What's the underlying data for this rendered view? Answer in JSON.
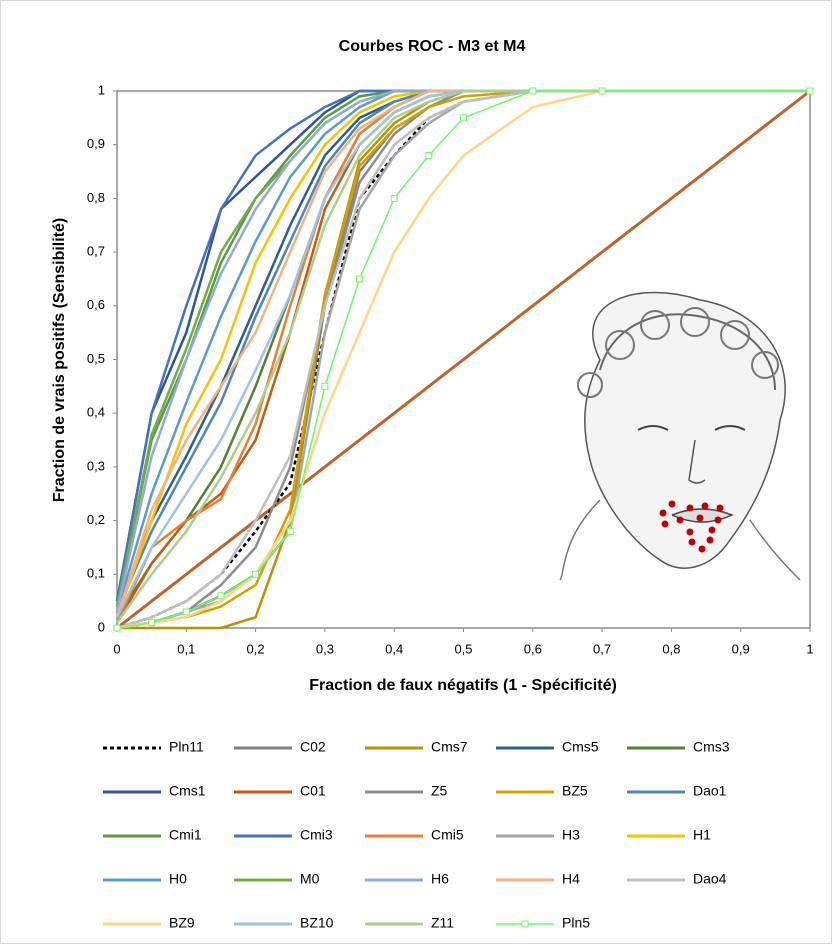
{
  "chart_data": {
    "type": "line",
    "title": "Courbes ROC - M3 et M4",
    "x_label": "Fraction de faux négatifs (1 - Spécificité)",
    "y_label": "Fraction de vrais positifs (Sensibilité)",
    "xlim": [
      0,
      1
    ],
    "ylim": [
      0,
      1
    ],
    "xticks": [
      0,
      {
        "value": 0.1,
        "label": "0,1"
      },
      {
        "value": 0.2,
        "label": "0,2"
      },
      {
        "value": 0.3,
        "label": "0,3"
      },
      {
        "value": 0.4,
        "label": "0,4"
      },
      {
        "value": 0.5,
        "label": "0,5"
      },
      {
        "value": 0.6,
        "label": "0,6"
      },
      {
        "value": 0.7,
        "label": "0,7"
      },
      {
        "value": 0.8,
        "label": "0,8"
      },
      {
        "value": 0.9,
        "label": "0,9"
      },
      1
    ],
    "yticks": [
      0,
      {
        "value": 0.1,
        "label": "0,1"
      },
      {
        "value": 0.2,
        "label": "0,2"
      },
      {
        "value": 0.3,
        "label": "0,3"
      },
      {
        "value": 0.4,
        "label": "0,4"
      },
      {
        "value": 0.5,
        "label": "0,5"
      },
      {
        "value": 0.6,
        "label": "0,6"
      },
      {
        "value": 0.7,
        "label": "0,7"
      },
      {
        "value": 0.8,
        "label": "0,8"
      },
      {
        "value": 0.9,
        "label": "0,9"
      },
      1
    ],
    "grid": false,
    "legend": "bottom",
    "x": [
      0,
      0.05,
      0.1,
      0.15,
      0.2,
      0.25,
      0.3,
      0.35,
      0.4,
      0.45,
      0.5,
      0.6,
      0.7,
      1
    ],
    "series": [
      {
        "name": "Pln11",
        "color": "#000000",
        "dashed": true,
        "values": [
          0,
          0.02,
          0.05,
          0.1,
          0.18,
          0.27,
          0.55,
          0.8,
          0.88,
          0.95,
          0.98,
          1,
          1,
          1
        ]
      },
      {
        "name": "C02",
        "color": "#7f7f7f",
        "values": [
          0,
          0.01,
          0.03,
          0.06,
          0.1,
          0.2,
          0.6,
          0.85,
          0.93,
          0.97,
          1,
          1,
          1,
          1
        ]
      },
      {
        "name": "Cms7",
        "color": "#bf8f00",
        "values": [
          0,
          0,
          0,
          0,
          0.02,
          0.2,
          0.62,
          0.87,
          0.94,
          0.98,
          1,
          1,
          1,
          1
        ]
      },
      {
        "name": "Cms5",
        "color": "#2e5f8a",
        "values": [
          0.03,
          0.2,
          0.32,
          0.45,
          0.6,
          0.75,
          0.88,
          0.95,
          0.98,
          1,
          1,
          1,
          1,
          1
        ]
      },
      {
        "name": "Cms3",
        "color": "#548235",
        "values": [
          0.02,
          0.12,
          0.2,
          0.3,
          0.45,
          0.62,
          0.8,
          0.92,
          0.97,
          1,
          1,
          1,
          1,
          1
        ]
      },
      {
        "name": "Cms1",
        "color": "#2f5597",
        "values": [
          0.05,
          0.4,
          0.55,
          0.78,
          0.84,
          0.9,
          0.96,
          1,
          1,
          1,
          1,
          1,
          1,
          1
        ]
      },
      {
        "name": "C01",
        "color": "#c55a11",
        "values": [
          0.01,
          0.12,
          0.2,
          0.25,
          0.35,
          0.55,
          0.78,
          0.9,
          0.96,
          0.99,
          1,
          1,
          1,
          1
        ]
      },
      {
        "name": "Z5",
        "color": "#8c8c8c",
        "values": [
          0,
          0.01,
          0.03,
          0.08,
          0.15,
          0.3,
          0.6,
          0.83,
          0.92,
          0.97,
          1,
          1,
          1,
          1
        ]
      },
      {
        "name": "BZ5",
        "color": "#d4a000",
        "values": [
          0,
          0.01,
          0.02,
          0.04,
          0.08,
          0.22,
          0.62,
          0.86,
          0.93,
          0.97,
          0.99,
          1,
          1,
          1
        ]
      },
      {
        "name": "Dao1",
        "color": "#4e86b5",
        "values": [
          0.03,
          0.18,
          0.3,
          0.42,
          0.58,
          0.72,
          0.86,
          0.94,
          0.98,
          1,
          1,
          1,
          1,
          1
        ]
      },
      {
        "name": "Cmi1",
        "color": "#5b9b3c",
        "values": [
          0.04,
          0.35,
          0.5,
          0.68,
          0.8,
          0.88,
          0.95,
          0.99,
          1,
          1,
          1,
          1,
          1,
          1
        ]
      },
      {
        "name": "Cmi3",
        "color": "#4472c4",
        "values": [
          0.05,
          0.4,
          0.6,
          0.78,
          0.88,
          0.93,
          0.97,
          1,
          1,
          1,
          1,
          1,
          1,
          1
        ]
      },
      {
        "name": "Cmi5",
        "color": "#ed7d31",
        "values": [
          0.01,
          0.15,
          0.2,
          0.24,
          0.38,
          0.6,
          0.8,
          0.92,
          0.97,
          1,
          1,
          1,
          1,
          1
        ]
      },
      {
        "name": "H3",
        "color": "#a5a5a5",
        "values": [
          0,
          0.01,
          0.03,
          0.05,
          0.1,
          0.18,
          0.55,
          0.78,
          0.88,
          0.94,
          0.98,
          1,
          1,
          1
        ]
      },
      {
        "name": "H1",
        "color": "#ffc000",
        "values": [
          0.02,
          0.2,
          0.38,
          0.5,
          0.68,
          0.8,
          0.9,
          0.96,
          0.99,
          1,
          1,
          1,
          1,
          1
        ]
      },
      {
        "name": "H0",
        "color": "#5b9bd5",
        "values": [
          0.03,
          0.25,
          0.42,
          0.58,
          0.72,
          0.84,
          0.92,
          0.97,
          1,
          1,
          1,
          1,
          1,
          1
        ]
      },
      {
        "name": "M0",
        "color": "#70ad47",
        "values": [
          0.04,
          0.36,
          0.52,
          0.7,
          0.8,
          0.87,
          0.94,
          0.98,
          1,
          1,
          1,
          1,
          1,
          1
        ]
      },
      {
        "name": "H6",
        "color": "#8faadc",
        "values": [
          0.03,
          0.32,
          0.5,
          0.66,
          0.78,
          0.87,
          0.94,
          0.98,
          1,
          1,
          1,
          1,
          1,
          1
        ]
      },
      {
        "name": "H4",
        "color": "#f4b183",
        "values": [
          0.02,
          0.22,
          0.35,
          0.45,
          0.55,
          0.7,
          0.85,
          0.93,
          0.97,
          1,
          1,
          1,
          1,
          1
        ]
      },
      {
        "name": "Dao4",
        "color": "#bfbfbf",
        "values": [
          0,
          0.02,
          0.05,
          0.1,
          0.2,
          0.32,
          0.6,
          0.8,
          0.9,
          0.95,
          0.98,
          1,
          1,
          1
        ]
      },
      {
        "name": "BZ9",
        "color": "#ffd58a",
        "values": [
          0,
          0.01,
          0.02,
          0.05,
          0.1,
          0.2,
          0.4,
          0.55,
          0.7,
          0.8,
          0.88,
          0.97,
          1,
          1
        ]
      },
      {
        "name": "BZ10",
        "color": "#9dc3e6",
        "values": [
          0.02,
          0.15,
          0.25,
          0.35,
          0.48,
          0.62,
          0.8,
          0.9,
          0.96,
          0.99,
          1,
          1,
          1,
          1
        ]
      },
      {
        "name": "Z11",
        "color": "#a9d18e",
        "values": [
          0.01,
          0.1,
          0.18,
          0.28,
          0.4,
          0.55,
          0.75,
          0.88,
          0.95,
          0.98,
          1,
          1,
          1,
          1
        ]
      },
      {
        "name": "Pln5",
        "color": "#66ff66",
        "marker": "square",
        "values": [
          0,
          0.01,
          0.03,
          0.06,
          0.1,
          0.18,
          0.45,
          0.65,
          0.8,
          0.88,
          0.95,
          1,
          1,
          1
        ]
      }
    ]
  }
}
